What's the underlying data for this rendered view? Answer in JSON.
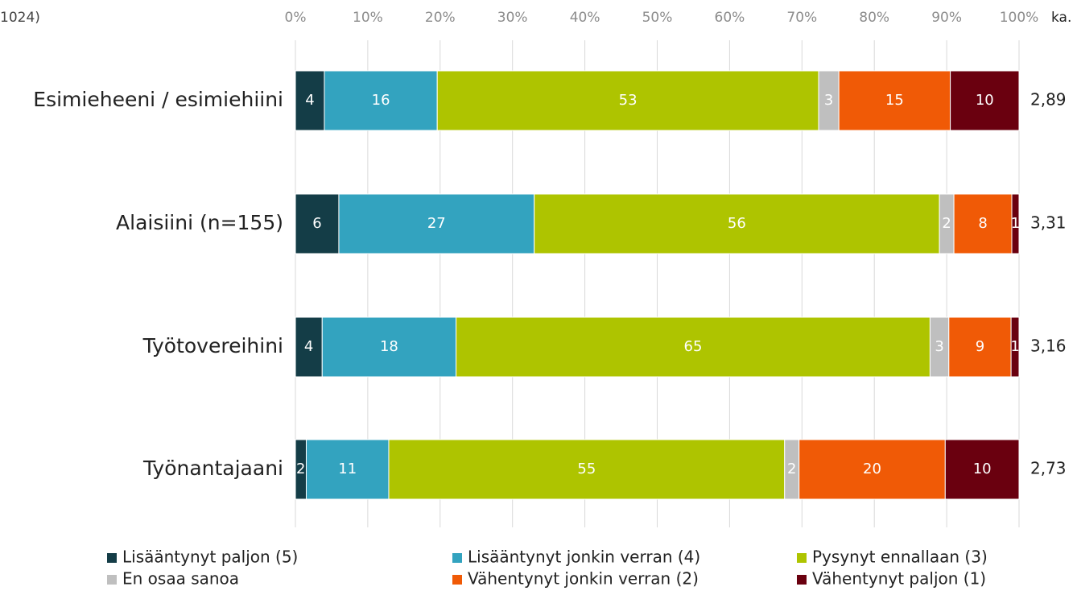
{
  "chart_data": {
    "type": "stacked_bar_horizontal",
    "note": "1024)",
    "categories": [
      "Esimieheeni / esimiehiini",
      "Alaisiini (n=155)",
      "Työtovereihini",
      "Työnantajaani"
    ],
    "series": [
      {
        "name": "Lisääntynyt paljon (5)",
        "color": "#143d47",
        "values": [
          4.0,
          6,
          3.7,
          1.5
        ],
        "value_labels": [
          "4",
          "6",
          "4",
          "2"
        ]
      },
      {
        "name": "Lisääntynyt jonkin verran (4)",
        "color": "#33a3bf",
        "values": [
          15.6,
          27,
          18.5,
          11.4
        ],
        "value_labels": [
          "16",
          "27",
          "18",
          "11"
        ]
      },
      {
        "name": "Pysynyt ennallaan (3)",
        "color": "#aec400",
        "values": [
          52.7,
          56,
          65.5,
          54.7
        ],
        "value_labels": [
          "53",
          "56",
          "65",
          "55"
        ]
      },
      {
        "name": "En osaa sanoa",
        "color": "#bfbfbf",
        "values": [
          2.8,
          2,
          2.6,
          2.0
        ],
        "value_labels": [
          "3",
          "2",
          "3",
          "2"
        ]
      },
      {
        "name": "Vähentynyt jonkin verran (2)",
        "color": "#f05a06",
        "values": [
          15.4,
          8,
          8.6,
          20.2
        ],
        "value_labels": [
          "15",
          "8",
          "9",
          "20"
        ]
      },
      {
        "name": "Vähentynyt paljon (1)",
        "color": "#6a000f",
        "values": [
          9.5,
          1,
          1.1,
          10.2
        ],
        "value_labels": [
          "10",
          "1",
          "1",
          "10"
        ]
      }
    ],
    "mean_label": "ka.",
    "means": [
      "2,89",
      "3,31",
      "3,16",
      "2,73"
    ],
    "xlim": [
      0,
      100
    ],
    "xticks": [
      {
        "value": 0,
        "label": "0%"
      },
      {
        "value": 10,
        "label": "10%"
      },
      {
        "value": 20,
        "label": "20%"
      },
      {
        "value": 30,
        "label": "30%"
      },
      {
        "value": 40,
        "label": "40%"
      },
      {
        "value": 50,
        "label": "50%"
      },
      {
        "value": 60,
        "label": "60%"
      },
      {
        "value": 70,
        "label": "70%"
      },
      {
        "value": 80,
        "label": "80%"
      },
      {
        "value": 90,
        "label": "90%"
      },
      {
        "value": 100,
        "label": "100%"
      }
    ],
    "grid": true,
    "legend": "bottom"
  }
}
